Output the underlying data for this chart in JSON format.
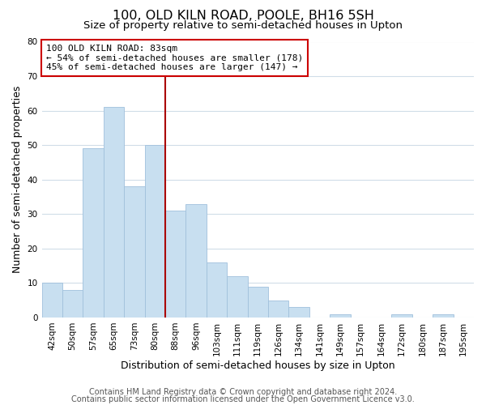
{
  "title": "100, OLD KILN ROAD, POOLE, BH16 5SH",
  "subtitle": "Size of property relative to semi-detached houses in Upton",
  "xlabel": "Distribution of semi-detached houses by size in Upton",
  "ylabel": "Number of semi-detached properties",
  "categories": [
    "42sqm",
    "50sqm",
    "57sqm",
    "65sqm",
    "73sqm",
    "80sqm",
    "88sqm",
    "96sqm",
    "103sqm",
    "111sqm",
    "119sqm",
    "126sqm",
    "134sqm",
    "141sqm",
    "149sqm",
    "157sqm",
    "164sqm",
    "172sqm",
    "180sqm",
    "187sqm",
    "195sqm"
  ],
  "values": [
    10,
    8,
    49,
    61,
    38,
    50,
    31,
    33,
    16,
    12,
    9,
    5,
    3,
    0,
    1,
    0,
    0,
    1,
    0,
    1,
    0
  ],
  "bar_color": "#c8dff0",
  "bar_edgecolor": "#a0c0dc",
  "vline_color": "#aa0000",
  "annotation_title": "100 OLD KILN ROAD: 83sqm",
  "annotation_line1": "← 54% of semi-detached houses are smaller (178)",
  "annotation_line2": "45% of semi-detached houses are larger (147) →",
  "annotation_box_facecolor": "#ffffff",
  "annotation_box_edgecolor": "#cc0000",
  "ylim": [
    0,
    80
  ],
  "yticks": [
    0,
    10,
    20,
    30,
    40,
    50,
    60,
    70,
    80
  ],
  "footer1": "Contains HM Land Registry data © Crown copyright and database right 2024.",
  "footer2": "Contains public sector information licensed under the Open Government Licence v3.0.",
  "background_color": "#ffffff",
  "plot_bg_color": "#ffffff",
  "grid_color": "#d0dde8",
  "title_fontsize": 11.5,
  "subtitle_fontsize": 9.5,
  "axis_label_fontsize": 9,
  "tick_fontsize": 7.5,
  "annotation_fontsize": 8,
  "footer_fontsize": 7,
  "vline_bar_index": 5
}
